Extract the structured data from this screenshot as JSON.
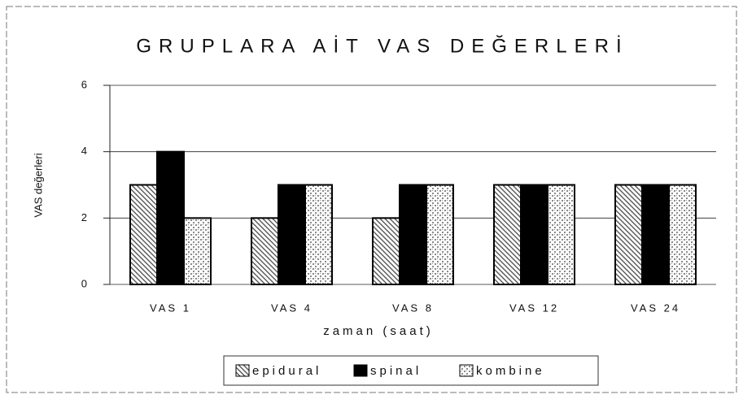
{
  "chart_data": {
    "type": "bar",
    "title": "GRUPLARA AİT VAS DEĞERLERİ",
    "x_label": "zaman (saat)",
    "y_label": "VAS değerleri",
    "categories": [
      "VAS 1",
      "VAS 4",
      "VAS 8",
      "VAS 12",
      "VAS 24"
    ],
    "series": [
      {
        "name": "epidural",
        "color": "#555555",
        "values": [
          3,
          2,
          2,
          3,
          3
        ]
      },
      {
        "name": "spinal",
        "color": "#000000",
        "values": [
          4,
          3,
          3,
          3,
          3
        ]
      },
      {
        "name": "kombine",
        "color": "#8a8a8a",
        "values": [
          2,
          3,
          3,
          3,
          3
        ]
      }
    ],
    "ylim": [
      0,
      6
    ],
    "yticks": [
      0,
      2,
      4,
      6
    ],
    "grid": true,
    "legend": "bottom"
  }
}
